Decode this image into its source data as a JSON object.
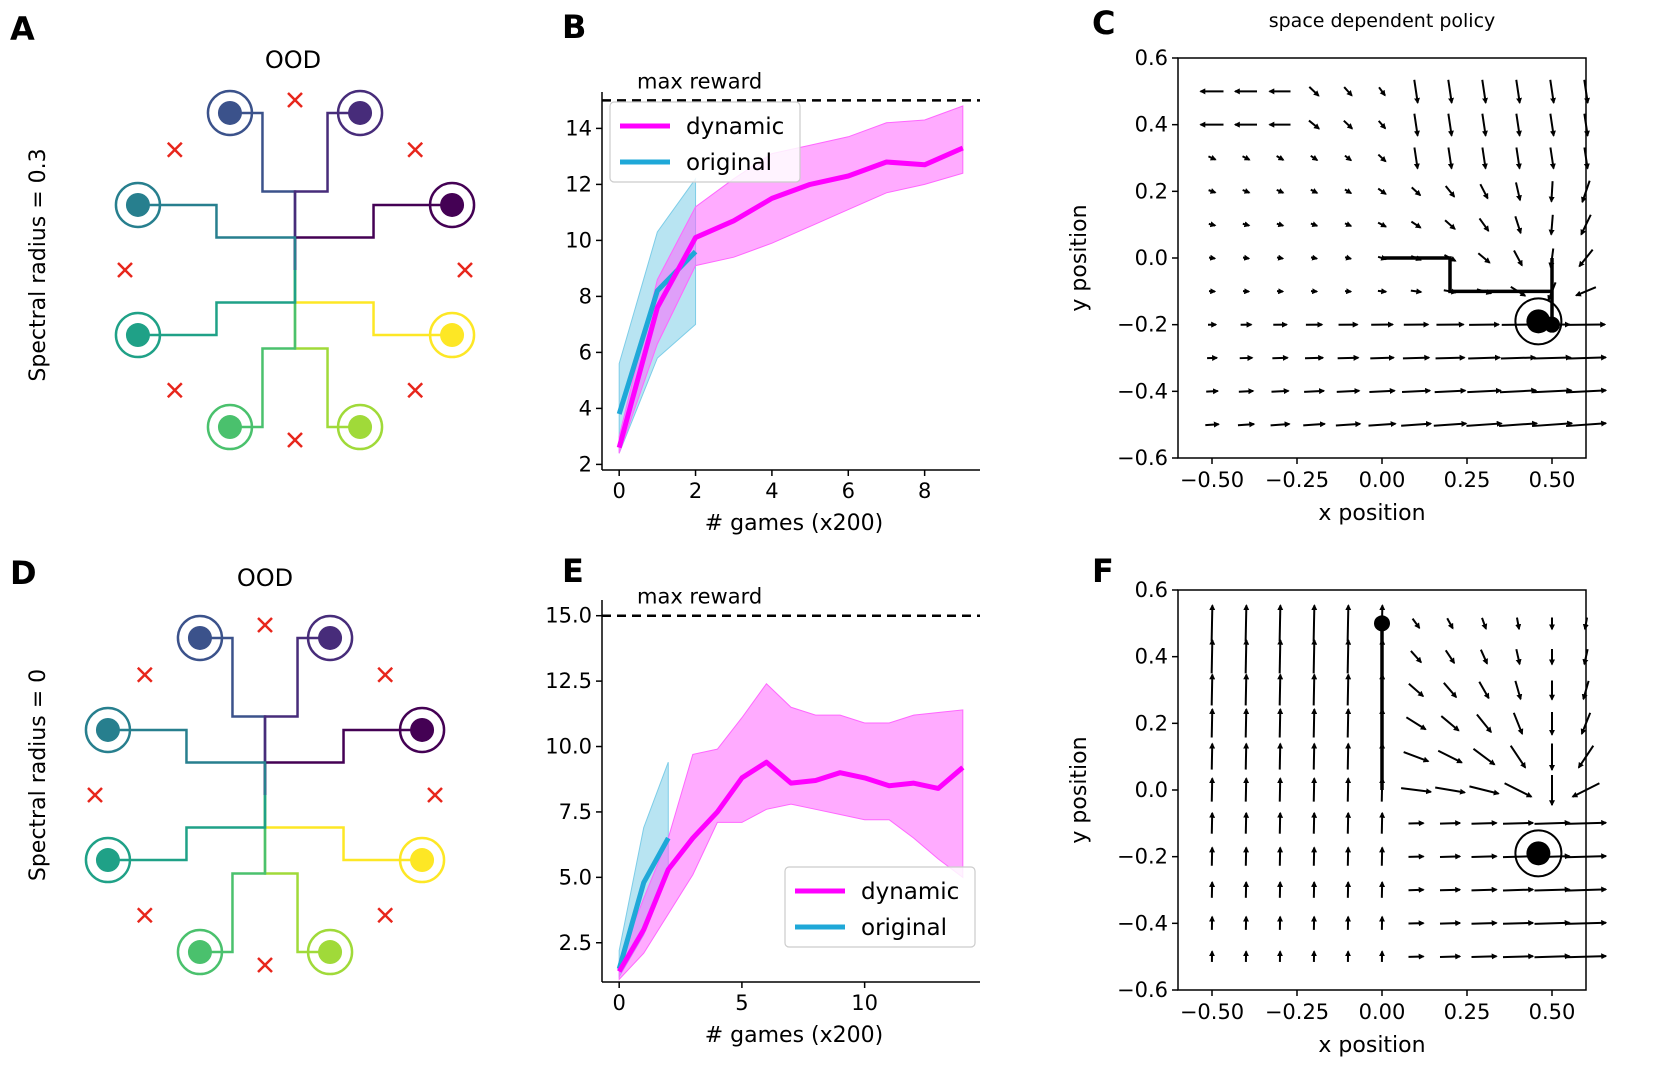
{
  "panels": {
    "A": {
      "letter": "A",
      "title": "OOD",
      "ylabel": "Spectral radius = 0.3"
    },
    "B": {
      "letter": "B"
    },
    "C": {
      "letter": "C",
      "title": "space dependent policy"
    },
    "D": {
      "letter": "D",
      "title": "OOD",
      "ylabel": "Spectral radius = 0"
    },
    "E": {
      "letter": "E"
    },
    "F": {
      "letter": "F"
    }
  },
  "colors": {
    "dynamic": "#ff00ff",
    "dynamic_band": "#ff66ff",
    "original": "#1fa8d8",
    "original_band": "#7dcde8",
    "miss": "#e8261c",
    "targets": [
      "#3b528b",
      "#472c7a",
      "#440154",
      "#fde725",
      "#a0da39",
      "#4ac16d",
      "#1fa187",
      "#277f8e"
    ]
  },
  "chart_data": [
    {
      "panel": "B",
      "type": "line",
      "xlabel": "# games (x200)",
      "ylabel": "",
      "xlim": [
        -0.45,
        9.45
      ],
      "ylim": [
        1.8,
        15.3
      ],
      "xticks": [
        0,
        2,
        4,
        6,
        8
      ],
      "yticks": [
        2,
        4,
        6,
        8,
        10,
        12,
        14
      ],
      "ytick_labels": [
        "2",
        "4",
        "6",
        "8",
        "10",
        "12",
        "14"
      ],
      "hline": {
        "y": 15,
        "label": "max reward"
      },
      "legend_position": "upper-left",
      "series": [
        {
          "name": "dynamic",
          "x": [
            0,
            1,
            2,
            3,
            4,
            5,
            6,
            7,
            8,
            9
          ],
          "values": [
            2.6,
            7.6,
            10.1,
            10.7,
            11.5,
            12.0,
            12.3,
            12.8,
            12.7,
            13.3
          ],
          "lower": [
            2.4,
            6.3,
            9.1,
            9.4,
            9.9,
            10.5,
            11.1,
            11.7,
            12.0,
            12.4
          ],
          "upper": [
            3.0,
            8.6,
            11.2,
            12.2,
            13.1,
            13.4,
            13.7,
            14.2,
            14.3,
            14.8
          ]
        },
        {
          "name": "original",
          "x": [
            0,
            1,
            2
          ],
          "values": [
            3.8,
            8.2,
            9.6
          ],
          "lower": [
            2.4,
            5.8,
            7.0
          ],
          "upper": [
            5.6,
            10.3,
            12.2
          ]
        }
      ]
    },
    {
      "panel": "C",
      "type": "scatter",
      "title": "space dependent policy",
      "xlabel": "x position",
      "ylabel": "y position",
      "xlim": [
        -0.6,
        0.6
      ],
      "ylim": [
        -0.6,
        0.6
      ],
      "xticks": [
        -0.5,
        -0.25,
        0.0,
        0.25,
        0.5
      ],
      "xtick_labels": [
        "−0.50",
        "−0.25",
        "0.00",
        "0.25",
        "0.50"
      ],
      "yticks": [
        -0.6,
        -0.4,
        -0.2,
        0.0,
        0.2,
        0.4,
        0.6
      ],
      "ytick_labels": [
        "−0.6",
        "−0.4",
        "−0.2",
        "0.0",
        "0.2",
        "0.4",
        "0.6"
      ],
      "field": "converge",
      "target": [
        0.46,
        -0.19
      ],
      "trajectory": [
        [
          0.0,
          0.0
        ],
        [
          0.2,
          0.0
        ],
        [
          0.2,
          -0.1
        ],
        [
          0.5,
          -0.1
        ],
        [
          0.5,
          0.0
        ],
        [
          0.5,
          -0.2
        ]
      ]
    },
    {
      "panel": "E",
      "type": "line",
      "xlabel": "# games (x200)",
      "ylabel": "",
      "xlim": [
        -0.7,
        14.7
      ],
      "ylim": [
        1.0,
        15.6
      ],
      "xticks": [
        0,
        5,
        10
      ],
      "yticks": [
        2.5,
        5.0,
        7.5,
        10.0,
        12.5,
        15.0
      ],
      "ytick_labels": [
        "2.5",
        "5.0",
        "7.5",
        "10.0",
        "12.5",
        "15.0"
      ],
      "hline": {
        "y": 15,
        "label": "max reward"
      },
      "legend_position": "lower-right",
      "series": [
        {
          "name": "dynamic",
          "x": [
            0,
            1,
            2,
            3,
            4,
            5,
            6,
            7,
            8,
            9,
            10,
            11,
            12,
            13,
            14
          ],
          "values": [
            1.4,
            3.0,
            5.3,
            6.5,
            7.5,
            8.8,
            9.4,
            8.6,
            8.7,
            9.0,
            8.8,
            8.5,
            8.6,
            8.4,
            9.2
          ],
          "lower": [
            1.1,
            2.1,
            3.6,
            5.1,
            7.1,
            7.1,
            7.6,
            7.8,
            7.6,
            7.4,
            7.2,
            7.2,
            6.5,
            5.7,
            5.0
          ],
          "upper": [
            1.8,
            4.2,
            6.5,
            9.7,
            9.9,
            11.1,
            12.4,
            11.5,
            11.2,
            11.2,
            10.9,
            10.9,
            11.2,
            11.3,
            11.4
          ]
        },
        {
          "name": "original",
          "x": [
            0,
            1,
            2
          ],
          "values": [
            1.5,
            4.8,
            6.5
          ],
          "lower": [
            1.2,
            2.8,
            5.2
          ],
          "upper": [
            2.2,
            6.9,
            9.4
          ]
        }
      ]
    },
    {
      "panel": "F",
      "type": "scatter",
      "xlabel": "x position",
      "ylabel": "y position",
      "xlim": [
        -0.6,
        0.6
      ],
      "ylim": [
        -0.6,
        0.6
      ],
      "xticks": [
        -0.5,
        -0.25,
        0.0,
        0.25,
        0.5
      ],
      "xtick_labels": [
        "−0.50",
        "−0.25",
        "0.00",
        "0.25",
        "0.50"
      ],
      "yticks": [
        -0.6,
        -0.4,
        -0.2,
        0.0,
        0.2,
        0.4,
        0.6
      ],
      "ytick_labels": [
        "−0.6",
        "−0.4",
        "−0.2",
        "0.0",
        "0.2",
        "0.4",
        "0.6"
      ],
      "field": "up",
      "target": [
        0.46,
        -0.19
      ],
      "trajectory": [
        [
          0.0,
          0.0
        ],
        [
          0.0,
          0.5
        ]
      ],
      "start": [
        0.0,
        0.5
      ]
    }
  ]
}
